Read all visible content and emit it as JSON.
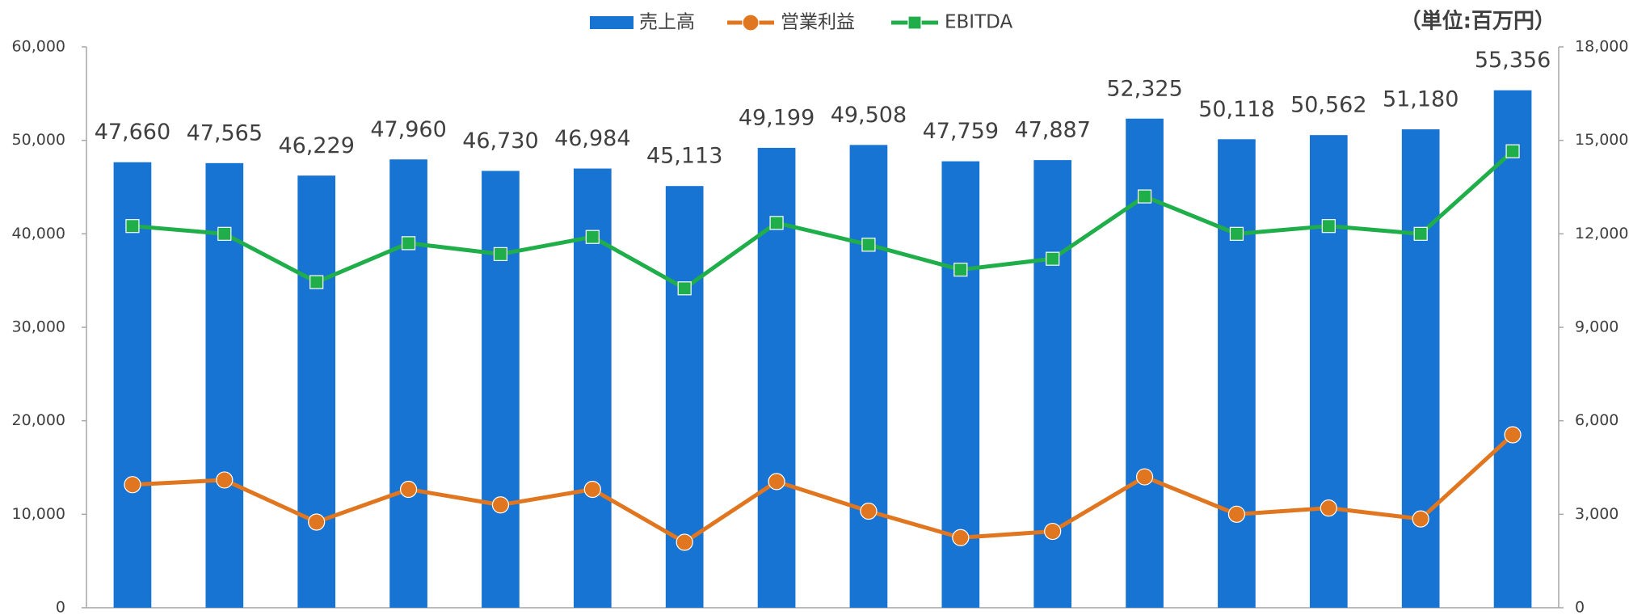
{
  "chart_data": {
    "type": "bar",
    "unit_label": "（単位:百万円）",
    "categories": [
      null,
      null,
      null,
      null,
      null,
      null,
      null,
      null,
      null,
      null,
      null,
      null,
      null,
      null,
      null,
      null
    ],
    "series": [
      {
        "name": "売上高",
        "type": "bar",
        "color": "#1874d2",
        "values": [
          47660,
          47565,
          46229,
          47960,
          46730,
          46984,
          45113,
          49199,
          49508,
          47759,
          47887,
          52325,
          50118,
          50562,
          51180,
          55356
        ],
        "value_labels": [
          "47,660",
          "47,565",
          "46,229",
          "47,960",
          "46,730",
          "46,984",
          "45,113",
          "49,199",
          "49,508",
          "47,759",
          "47,887",
          "52,325",
          "50,118",
          "50,562",
          "51,180",
          "55,356"
        ]
      },
      {
        "name": "営業利益",
        "type": "line",
        "marker": "circle",
        "axis": "y2",
        "color": "#e0761f",
        "values": [
          3950,
          4100,
          2750,
          3800,
          3300,
          3800,
          2100,
          4050,
          3100,
          2250,
          2450,
          4200,
          3000,
          3200,
          2850,
          5550
        ]
      },
      {
        "name": "EBITDA",
        "type": "line",
        "marker": "square",
        "axis": "y2",
        "color": "#1fae4a",
        "values": [
          12250,
          12000,
          10450,
          11700,
          11350,
          11900,
          10250,
          12350,
          11650,
          10850,
          11200,
          13200,
          12000,
          12250,
          12000,
          14650
        ]
      }
    ],
    "ylim": [
      0,
      60000
    ],
    "yticks": [
      0,
      {
        "value": 10000,
        "label": "10,000"
      },
      {
        "value": 20000,
        "label": "20,000"
      },
      {
        "value": 30000,
        "label": "30,000"
      },
      {
        "value": 40000,
        "label": "40,000"
      },
      {
        "value": 50000,
        "label": "50,000"
      },
      {
        "value": 60000,
        "label": "60,000"
      }
    ],
    "y2lim": [
      0,
      18000
    ],
    "y2ticks": [
      0,
      {
        "value": 3000,
        "label": "3,000"
      },
      {
        "value": 6000,
        "label": "6,000"
      },
      {
        "value": 9000,
        "label": "9,000"
      },
      {
        "value": 12000,
        "label": "12,000"
      },
      {
        "value": 15000,
        "label": "15,000"
      },
      {
        "value": 18000,
        "label": "18,000"
      }
    ],
    "grid": false,
    "legend": "top"
  }
}
